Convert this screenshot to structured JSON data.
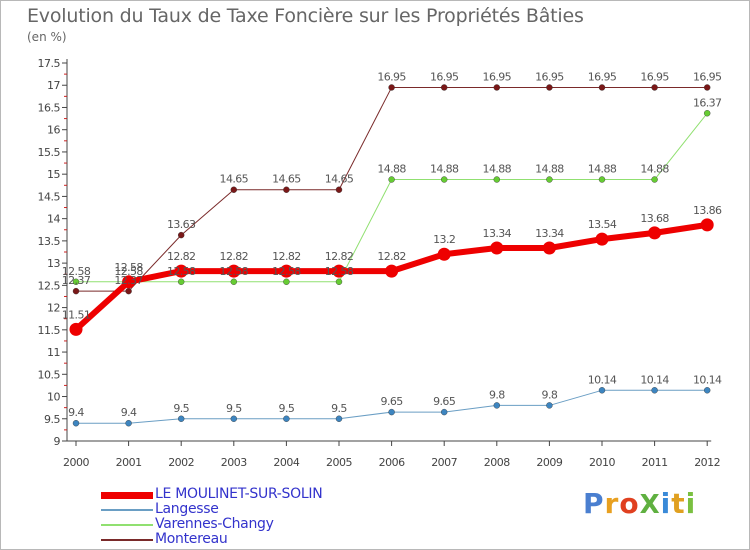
{
  "header": {
    "title": "Evolution du Taux de Taxe Foncière sur les Propriétés Bâties",
    "unit": "(en %)"
  },
  "brand": {
    "text": "ProXiti",
    "letter_colors": [
      "#4a7fd0",
      "#e8a020",
      "#e04020",
      "#5fb040",
      "#3a8ad8",
      "#e0a020",
      "#7ac040"
    ]
  },
  "chart_data": {
    "type": "line",
    "title": "Evolution du Taux de Taxe Foncière sur les Propriétés Bâties",
    "ylabel": "(en %)",
    "xlabel": "",
    "ylim": [
      9,
      17.5
    ],
    "yticks": [
      "9",
      "9.5",
      "10",
      "10.5",
      "11",
      "11.5",
      "12",
      "12.5",
      "13",
      "13.5",
      "14",
      "14.5",
      "15",
      "15.5",
      "16",
      "16.5",
      "17",
      "17.5"
    ],
    "grid": false,
    "legend_position": "bottom-left",
    "categories": [
      "2000",
      "2001",
      "2002",
      "2003",
      "2004",
      "2005",
      "2006",
      "2007",
      "2008",
      "2009",
      "2010",
      "2011",
      "2012"
    ],
    "series": [
      {
        "name": "Montereau",
        "color": "#7a2a2a",
        "marker_color": "#7a1818",
        "width": 1,
        "values": [
          12.37,
          12.37,
          13.63,
          14.65,
          14.65,
          14.65,
          16.95,
          16.95,
          16.95,
          16.95,
          16.95,
          16.95,
          16.95
        ],
        "labels": [
          "12.37",
          "12.37",
          "13.63",
          "14.65",
          "14.65",
          "14.65",
          "16.95",
          "16.95",
          "16.95",
          "16.95",
          "16.95",
          "16.95",
          "16.95"
        ]
      },
      {
        "name": "Varennes-Changy",
        "color": "#90e070",
        "marker_color": "#66cc33",
        "width": 1,
        "values": [
          12.58,
          12.58,
          12.58,
          12.58,
          12.58,
          12.58,
          14.88,
          14.88,
          14.88,
          14.88,
          14.88,
          14.88,
          16.37
        ],
        "labels": [
          "12.58",
          "12.58",
          "12.58",
          "12.58",
          "12.58",
          "12.58",
          "14.88",
          "14.88",
          "14.88",
          "14.88",
          "14.88",
          "14.88",
          "16.37"
        ]
      },
      {
        "name": "Langesse",
        "color": "#6a9ec4",
        "marker_color": "#3d85c0",
        "width": 1,
        "values": [
          9.4,
          9.4,
          9.5,
          9.5,
          9.5,
          9.5,
          9.65,
          9.65,
          9.8,
          9.8,
          10.14,
          10.14,
          10.14
        ],
        "labels": [
          "9.4",
          "9.4",
          "9.5",
          "9.5",
          "9.5",
          "9.5",
          "9.65",
          "9.65",
          "9.8",
          "9.8",
          "10.14",
          "10.14",
          "10.14"
        ]
      },
      {
        "name": "LE MOULINET-SUR-SOLIN",
        "color": "#ee0000",
        "marker_color": "#ee0000",
        "width": 6,
        "values": [
          11.51,
          12.58,
          12.82,
          12.82,
          12.82,
          12.82,
          12.82,
          13.2,
          13.34,
          13.34,
          13.54,
          13.68,
          13.86
        ],
        "labels": [
          "11.51",
          "12.58",
          "12.82",
          "12.82",
          "12.82",
          "12.82",
          "12.82",
          "13.2",
          "13.34",
          "13.34",
          "13.54",
          "13.68",
          "13.86"
        ]
      }
    ]
  },
  "legend": {
    "items": [
      {
        "label": "LE MOULINET-SUR-SOLIN",
        "color": "#ee0000",
        "thickness": 7
      },
      {
        "label": "Langesse",
        "color": "#6a9ec4",
        "thickness": 2
      },
      {
        "label": "Varennes-Changy",
        "color": "#90e070",
        "thickness": 2
      },
      {
        "label": "Montereau",
        "color": "#7a2a2a",
        "thickness": 2
      }
    ]
  }
}
